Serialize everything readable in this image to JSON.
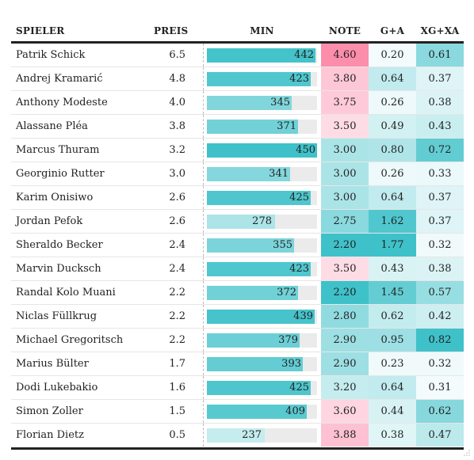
{
  "chart_data": {
    "type": "table",
    "columns": [
      "SPIELER",
      "PREIS",
      "MIN",
      "NOTE",
      "G+A",
      "XG+XA"
    ],
    "min_max": 450,
    "rows": [
      {
        "spieler": "Patrik Schick",
        "preis": "6.5",
        "min": 442,
        "note": "4.60",
        "ga": "0.20",
        "xgxa": "0.61"
      },
      {
        "spieler": "Andrej Kramarić",
        "preis": "4.8",
        "min": 423,
        "note": "3.80",
        "ga": "0.64",
        "xgxa": "0.37"
      },
      {
        "spieler": "Anthony Modeste",
        "preis": "4.0",
        "min": 345,
        "note": "3.75",
        "ga": "0.26",
        "xgxa": "0.38"
      },
      {
        "spieler": "Alassane Pléa",
        "preis": "3.8",
        "min": 371,
        "note": "3.50",
        "ga": "0.49",
        "xgxa": "0.43"
      },
      {
        "spieler": "Marcus Thuram",
        "preis": "3.2",
        "min": 450,
        "note": "3.00",
        "ga": "0.80",
        "xgxa": "0.72"
      },
      {
        "spieler": "Georginio Rutter",
        "preis": "3.0",
        "min": 341,
        "note": "3.00",
        "ga": "0.26",
        "xgxa": "0.33"
      },
      {
        "spieler": "Karim Onisiwo",
        "preis": "2.6",
        "min": 425,
        "note": "3.00",
        "ga": "0.64",
        "xgxa": "0.37"
      },
      {
        "spieler": "Jordan Pefok",
        "preis": "2.6",
        "min": 278,
        "note": "2.75",
        "ga": "1.62",
        "xgxa": "0.37"
      },
      {
        "spieler": "Sheraldo Becker",
        "preis": "2.4",
        "min": 355,
        "note": "2.20",
        "ga": "1.77",
        "xgxa": "0.32"
      },
      {
        "spieler": "Marvin Ducksch",
        "preis": "2.4",
        "min": 423,
        "note": "3.50",
        "ga": "0.43",
        "xgxa": "0.38"
      },
      {
        "spieler": "Randal Kolo Muani",
        "preis": "2.2",
        "min": 372,
        "note": "2.20",
        "ga": "1.45",
        "xgxa": "0.57"
      },
      {
        "spieler": "Niclas Füllkrug",
        "preis": "2.2",
        "min": 439,
        "note": "2.80",
        "ga": "0.62",
        "xgxa": "0.42"
      },
      {
        "spieler": "Michael Gregoritsch",
        "preis": "2.2",
        "min": 379,
        "note": "2.90",
        "ga": "0.95",
        "xgxa": "0.82"
      },
      {
        "spieler": "Marius Bülter",
        "preis": "1.7",
        "min": 393,
        "note": "2.90",
        "ga": "0.23",
        "xgxa": "0.32"
      },
      {
        "spieler": "Dodi Lukebakio",
        "preis": "1.6",
        "min": 425,
        "note": "3.20",
        "ga": "0.64",
        "xgxa": "0.31"
      },
      {
        "spieler": "Simon Zoller",
        "preis": "1.5",
        "min": 409,
        "note": "3.60",
        "ga": "0.44",
        "xgxa": "0.62"
      },
      {
        "spieler": "Florian Dietz",
        "preis": "0.5",
        "min": 237,
        "note": "3.88",
        "ga": "0.38",
        "xgxa": "0.47"
      }
    ]
  },
  "colors": {
    "teal": "#3fc1c9",
    "pink": "#fc8eac",
    "bar_track": "#ebebeb"
  }
}
